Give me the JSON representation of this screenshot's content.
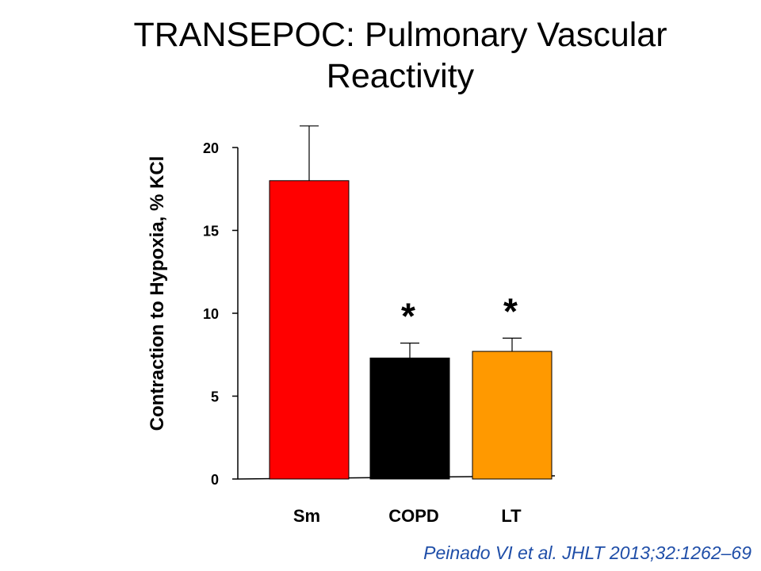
{
  "title": "TRANSEPOC: Pulmonary Vascular Reactivity",
  "citation": "Peinado VI et al. JHLT 2013;32:1262–69",
  "chart_data": {
    "type": "bar",
    "title": "TRANSEPOC: Pulmonary Vascular Reactivity",
    "xlabel": "",
    "ylabel": "Contraction to Hypoxia, % KCl",
    "categories": [
      "Sm",
      "COPD",
      "LT"
    ],
    "values": [
      18.0,
      7.3,
      7.7
    ],
    "error_upper": [
      21.3,
      8.2,
      8.5
    ],
    "significance": [
      "",
      "*",
      "*"
    ],
    "colors": [
      "#ff0000",
      "#000000",
      "#ff9900"
    ],
    "yticks": [
      0,
      5,
      10,
      15,
      20
    ],
    "ylim": [
      0,
      20
    ],
    "grid": false,
    "legend": "none"
  }
}
